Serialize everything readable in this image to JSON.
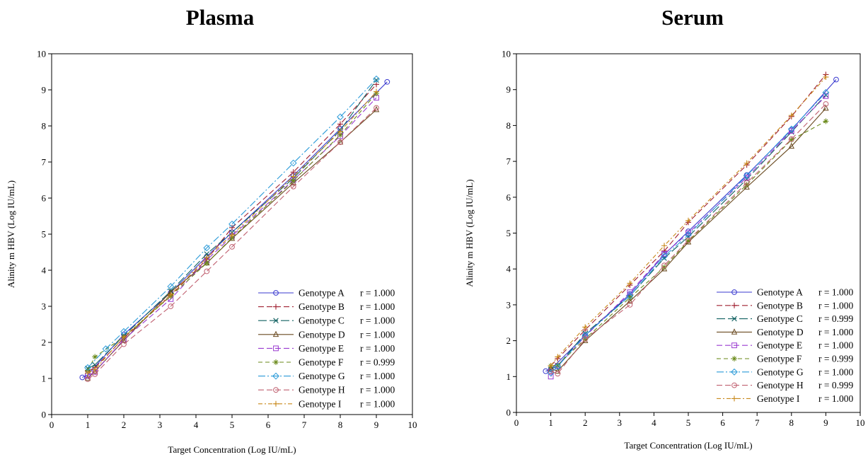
{
  "chart_data": [
    {
      "type": "line",
      "title": "Plasma",
      "xlabel": "Target Concentration (Log IU/mL)",
      "ylabel": "Alinity m HBV (Log IU/mL)",
      "xlim": [
        0,
        10
      ],
      "ylim": [
        0,
        10
      ],
      "xticks": [
        "0",
        "1",
        "2",
        "3",
        "4",
        "5",
        "6",
        "7",
        "8",
        "9",
        "10"
      ],
      "yticks": [
        "0",
        "1",
        "2",
        "3",
        "4",
        "5",
        "6",
        "7",
        "8",
        "9",
        "10"
      ],
      "grid": false,
      "legend_position": "bottom-right",
      "series": [
        {
          "name": "Genotype A",
          "r_label": "r = 1.000",
          "color": "#3a3acf",
          "marker": "circle",
          "dash": "",
          "points": [
            [
              0.85,
              1.03
            ],
            [
              1.0,
              1.1
            ],
            [
              2.0,
              2.22
            ],
            [
              3.3,
              3.38
            ],
            [
              4.3,
              4.38
            ],
            [
              5.0,
              5.05
            ],
            [
              6.7,
              6.62
            ],
            [
              8.0,
              7.92
            ],
            [
              9.3,
              9.22
            ]
          ]
        },
        {
          "name": "Genotype B",
          "r_label": "r = 1.000",
          "color": "#a02030",
          "marker": "plus",
          "dash": "8,4",
          "points": [
            [
              1.0,
              1.2
            ],
            [
              1.2,
              1.3
            ],
            [
              2.0,
              2.12
            ],
            [
              3.3,
              3.3
            ],
            [
              4.3,
              4.3
            ],
            [
              5.0,
              5.18
            ],
            [
              6.7,
              6.72
            ],
            [
              8.0,
              8.05
            ],
            [
              9.0,
              9.15
            ]
          ]
        },
        {
          "name": "Genotype C",
          "r_label": "r = 1.000",
          "color": "#106060",
          "marker": "x",
          "dash": "12,4",
          "points": [
            [
              1.0,
              1.28
            ],
            [
              1.2,
              1.38
            ],
            [
              2.0,
              2.18
            ],
            [
              3.3,
              3.42
            ],
            [
              4.3,
              4.45
            ],
            [
              5.0,
              5.05
            ],
            [
              6.7,
              6.55
            ],
            [
              8.0,
              7.88
            ],
            [
              9.0,
              9.27
            ]
          ]
        },
        {
          "name": "Genotype D",
          "r_label": "r = 1.000",
          "color": "#6a4a20",
          "marker": "triangle",
          "dash": "",
          "points": [
            [
              1.0,
              1.0
            ],
            [
              1.2,
              1.2
            ],
            [
              2.0,
              2.05
            ],
            [
              3.3,
              3.4
            ],
            [
              4.3,
              4.2
            ],
            [
              5.0,
              4.88
            ],
            [
              6.7,
              6.42
            ],
            [
              8.0,
              7.55
            ],
            [
              9.0,
              8.45
            ]
          ]
        },
        {
          "name": "Genotype E",
          "r_label": "r = 1.000",
          "color": "#9a3ad0",
          "marker": "square",
          "dash": "8,4",
          "points": [
            [
              1.0,
              1.08
            ],
            [
              1.2,
              1.18
            ],
            [
              2.0,
              2.08
            ],
            [
              3.3,
              3.2
            ],
            [
              4.3,
              4.28
            ],
            [
              5.0,
              4.95
            ],
            [
              6.7,
              6.5
            ],
            [
              8.0,
              7.72
            ],
            [
              9.0,
              8.78
            ]
          ]
        },
        {
          "name": "Genotype F",
          "r_label": "r = 0.999",
          "color": "#6a8a1a",
          "marker": "star",
          "dash": "6,4",
          "points": [
            [
              1.0,
              1.22
            ],
            [
              1.2,
              1.6
            ],
            [
              2.0,
              2.15
            ],
            [
              3.3,
              3.28
            ],
            [
              4.3,
              4.2
            ],
            [
              5.0,
              4.9
            ],
            [
              6.7,
              6.48
            ],
            [
              8.0,
              7.75
            ],
            [
              9.0,
              8.9
            ]
          ]
        },
        {
          "name": "Genotype G",
          "r_label": "r = 1.000",
          "color": "#2a9ad8",
          "marker": "diamond",
          "dash": "10,3,2,3",
          "points": [
            [
              1.0,
              1.3
            ],
            [
              1.5,
              1.82
            ],
            [
              2.0,
              2.3
            ],
            [
              3.3,
              3.55
            ],
            [
              4.3,
              4.62
            ],
            [
              5.0,
              5.28
            ],
            [
              6.7,
              6.97
            ],
            [
              8.0,
              8.25
            ],
            [
              9.0,
              9.3
            ]
          ]
        },
        {
          "name": "Genotype H",
          "r_label": "r = 1.000",
          "color": "#c06070",
          "marker": "circle",
          "dash": "8,4",
          "points": [
            [
              1.0,
              0.98
            ],
            [
              1.2,
              1.12
            ],
            [
              2.0,
              1.95
            ],
            [
              3.3,
              3.0
            ],
            [
              4.3,
              3.97
            ],
            [
              5.0,
              4.65
            ],
            [
              6.7,
              6.32
            ],
            [
              8.0,
              7.55
            ],
            [
              9.0,
              8.5
            ]
          ]
        },
        {
          "name": "Genotype I",
          "r_label": "r = 1.000",
          "color": "#c8881a",
          "marker": "plus",
          "dash": "6,3,2,3",
          "points": [
            [
              1.0,
              1.15
            ],
            [
              1.2,
              1.25
            ],
            [
              2.0,
              2.15
            ],
            [
              3.3,
              3.32
            ],
            [
              4.3,
              4.35
            ],
            [
              5.0,
              4.98
            ],
            [
              6.7,
              6.6
            ],
            [
              8.0,
              7.85
            ],
            [
              9.0,
              8.95
            ]
          ]
        }
      ]
    },
    {
      "type": "line",
      "title": "Serum",
      "xlabel": "Target Concentration (Log IU/mL)",
      "ylabel": "Alinity m HBV (Log IU/mL)",
      "xlim": [
        0,
        10
      ],
      "ylim": [
        0,
        10
      ],
      "xticks": [
        "0",
        "1",
        "2",
        "3",
        "4",
        "5",
        "6",
        "7",
        "8",
        "9",
        "10"
      ],
      "yticks": [
        "0",
        "1",
        "2",
        "3",
        "4",
        "5",
        "6",
        "7",
        "8",
        "9",
        "10"
      ],
      "grid": false,
      "legend_position": "bottom-right",
      "series": [
        {
          "name": "Genotype A",
          "r_label": "r = 1.000",
          "color": "#3a3acf",
          "marker": "circle",
          "dash": "",
          "points": [
            [
              0.85,
              1.15
            ],
            [
              1.0,
              1.2
            ],
            [
              2.0,
              2.15
            ],
            [
              3.3,
              3.3
            ],
            [
              4.3,
              4.4
            ],
            [
              5.0,
              5.05
            ],
            [
              6.7,
              6.62
            ],
            [
              8.0,
              7.88
            ],
            [
              9.3,
              9.28
            ]
          ]
        },
        {
          "name": "Genotype B",
          "r_label": "r = 1.000",
          "color": "#a02030",
          "marker": "plus",
          "dash": "8,4",
          "points": [
            [
              1.0,
              1.3
            ],
            [
              1.2,
              1.5
            ],
            [
              2.0,
              2.3
            ],
            [
              3.3,
              3.55
            ],
            [
              4.3,
              4.5
            ],
            [
              5.0,
              5.3
            ],
            [
              6.7,
              6.9
            ],
            [
              8.0,
              8.25
            ],
            [
              9.0,
              9.42
            ]
          ]
        },
        {
          "name": "Genotype C",
          "r_label": "r = 0.999",
          "color": "#106060",
          "marker": "x",
          "dash": "12,4",
          "points": [
            [
              1.0,
              1.2
            ],
            [
              1.2,
              1.3
            ],
            [
              2.0,
              2.2
            ],
            [
              3.3,
              3.25
            ],
            [
              4.3,
              4.3
            ],
            [
              5.0,
              4.9
            ],
            [
              6.7,
              6.5
            ],
            [
              8.0,
              7.82
            ],
            [
              9.0,
              8.85
            ]
          ]
        },
        {
          "name": "Genotype D",
          "r_label": "r = 1.000",
          "color": "#6a4a20",
          "marker": "triangle",
          "dash": "",
          "points": [
            [
              1.0,
              1.22
            ],
            [
              1.2,
              1.15
            ],
            [
              2.0,
              2.0
            ],
            [
              3.3,
              3.1
            ],
            [
              4.3,
              4.0
            ],
            [
              5.0,
              4.75
            ],
            [
              6.7,
              6.28
            ],
            [
              8.0,
              7.42
            ],
            [
              9.0,
              8.48
            ]
          ]
        },
        {
          "name": "Genotype E",
          "r_label": "r = 1.000",
          "color": "#9a3ad0",
          "marker": "square",
          "dash": "8,4",
          "points": [
            [
              1.0,
              1.0
            ],
            [
              1.2,
              1.3
            ],
            [
              2.0,
              2.12
            ],
            [
              3.3,
              3.35
            ],
            [
              4.3,
              4.42
            ],
            [
              5.0,
              5.0
            ],
            [
              6.7,
              6.55
            ],
            [
              8.0,
              7.85
            ],
            [
              9.0,
              8.82
            ]
          ]
        },
        {
          "name": "Genotype F",
          "r_label": "r = 0.999",
          "color": "#6a8a1a",
          "marker": "star",
          "dash": "6,4",
          "points": [
            [
              1.0,
              1.3
            ],
            [
              1.2,
              1.32
            ],
            [
              2.0,
              2.05
            ],
            [
              3.3,
              3.2
            ],
            [
              4.3,
              4.05
            ],
            [
              5.0,
              4.78
            ],
            [
              6.7,
              6.35
            ],
            [
              8.0,
              7.6
            ],
            [
              9.0,
              8.12
            ]
          ]
        },
        {
          "name": "Genotype G",
          "r_label": "r = 1.000",
          "color": "#2a9ad8",
          "marker": "diamond",
          "dash": "10,3,2,3",
          "points": [
            [
              1.0,
              1.1
            ],
            [
              1.2,
              1.28
            ],
            [
              2.0,
              2.15
            ],
            [
              3.3,
              3.25
            ],
            [
              4.3,
              4.35
            ],
            [
              5.0,
              4.95
            ],
            [
              6.7,
              6.6
            ],
            [
              8.0,
              7.9
            ],
            [
              9.0,
              8.92
            ]
          ]
        },
        {
          "name": "Genotype H",
          "r_label": "r = 0.999",
          "color": "#c06070",
          "marker": "circle",
          "dash": "8,4",
          "points": [
            [
              1.0,
              1.15
            ],
            [
              1.2,
              1.08
            ],
            [
              2.0,
              2.05
            ],
            [
              3.3,
              3.0
            ],
            [
              4.3,
              4.1
            ],
            [
              5.0,
              4.8
            ],
            [
              6.7,
              6.4
            ],
            [
              8.0,
              7.62
            ],
            [
              9.0,
              8.6
            ]
          ]
        },
        {
          "name": "Genotype I",
          "r_label": "r = 1.000",
          "color": "#c8881a",
          "marker": "plus",
          "dash": "6,3,2,3",
          "points": [
            [
              1.0,
              1.3
            ],
            [
              1.2,
              1.55
            ],
            [
              2.0,
              2.38
            ],
            [
              3.3,
              3.6
            ],
            [
              4.3,
              4.65
            ],
            [
              5.0,
              5.35
            ],
            [
              6.7,
              6.95
            ],
            [
              8.0,
              8.28
            ],
            [
              9.0,
              9.35
            ]
          ]
        }
      ]
    }
  ]
}
